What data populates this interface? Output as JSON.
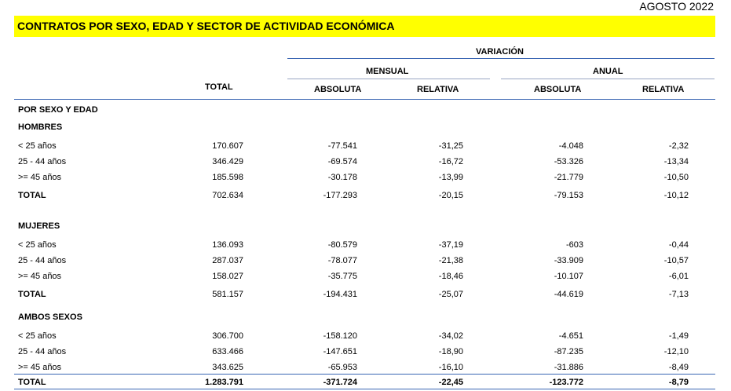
{
  "date": "AGOSTO 2022",
  "title": "CONTRATOS POR SEXO, EDAD Y SECTOR DE ACTIVIDAD ECONÓMICA",
  "headers": {
    "variacion": "VARIACIÓN",
    "mensual": "MENSUAL",
    "anual": "ANUAL",
    "total": "TOTAL",
    "absoluta": "ABSOLUTA",
    "relativa": "RELATIVA"
  },
  "section_label": "POR SEXO Y EDAD",
  "groups": [
    {
      "name": "HOMBRES",
      "rows": [
        {
          "label": "< 25 años",
          "total": "170.607",
          "m_abs": "-77.541",
          "m_rel": "-31,25",
          "a_abs": "-4.048",
          "a_rel": "-2,32"
        },
        {
          "label": "25 - 44 años",
          "total": "346.429",
          "m_abs": "-69.574",
          "m_rel": "-16,72",
          "a_abs": "-53.326",
          "a_rel": "-13,34"
        },
        {
          "label": ">= 45 años",
          "total": "185.598",
          "m_abs": "-30.178",
          "m_rel": "-13,99",
          "a_abs": "-21.779",
          "a_rel": "-10,50"
        }
      ],
      "total": {
        "label": "TOTAL",
        "total": "702.634",
        "m_abs": "-177.293",
        "m_rel": "-20,15",
        "a_abs": "-79.153",
        "a_rel": "-10,12"
      }
    },
    {
      "name": "MUJERES",
      "rows": [
        {
          "label": "< 25 años",
          "total": "136.093",
          "m_abs": "-80.579",
          "m_rel": "-37,19",
          "a_abs": "-603",
          "a_rel": "-0,44"
        },
        {
          "label": "25 - 44 años",
          "total": "287.037",
          "m_abs": "-78.077",
          "m_rel": "-21,38",
          "a_abs": "-33.909",
          "a_rel": "-10,57"
        },
        {
          "label": ">= 45 años",
          "total": "158.027",
          "m_abs": "-35.775",
          "m_rel": "-18,46",
          "a_abs": "-10.107",
          "a_rel": "-6,01"
        }
      ],
      "total": {
        "label": "TOTAL",
        "total": "581.157",
        "m_abs": "-194.431",
        "m_rel": "-25,07",
        "a_abs": "-44.619",
        "a_rel": "-7,13"
      }
    },
    {
      "name": "AMBOS SEXOS",
      "rows": [
        {
          "label": "< 25 años",
          "total": "306.700",
          "m_abs": "-158.120",
          "m_rel": "-34,02",
          "a_abs": "-4.651",
          "a_rel": "-1,49"
        },
        {
          "label": "25 - 44 años",
          "total": "633.466",
          "m_abs": "-147.651",
          "m_rel": "-18,90",
          "a_abs": "-87.235",
          "a_rel": "-12,10"
        },
        {
          "label": ">= 45 años",
          "total": "343.625",
          "m_abs": "-65.953",
          "m_rel": "-16,10",
          "a_abs": "-31.886",
          "a_rel": "-8,49"
        }
      ],
      "total": {
        "label": "TOTAL",
        "total": "1.283.791",
        "m_abs": "-371.724",
        "m_rel": "-22,45",
        "a_abs": "-123.772",
        "a_rel": "-8,79"
      }
    }
  ]
}
